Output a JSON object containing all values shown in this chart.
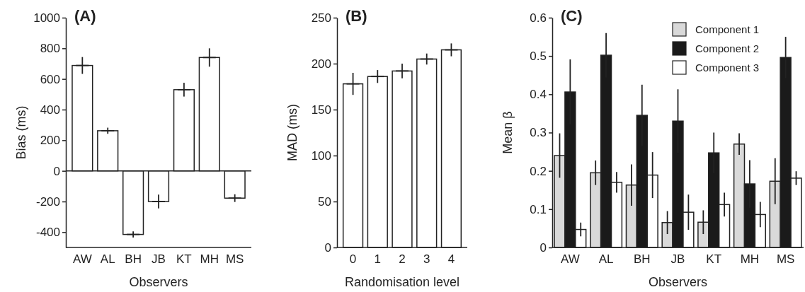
{
  "chart_data": [
    {
      "type": "bar",
      "title": "(A)",
      "xlabel": "Observers",
      "ylabel": "Bias (ms)",
      "categories": [
        "AW",
        "AL",
        "BH",
        "JB",
        "KT",
        "MH",
        "MS"
      ],
      "values": [
        688,
        262,
        -415,
        -200,
        530,
        740,
        -178
      ],
      "errors": [
        55,
        20,
        20,
        45,
        45,
        60,
        25
      ],
      "color": "#ffffff",
      "ylim": [
        -500,
        1000
      ],
      "yticks": [
        -400,
        -200,
        0,
        200,
        400,
        600,
        800,
        1000
      ]
    },
    {
      "type": "bar",
      "title": "(B)",
      "xlabel": "Randomisation level",
      "ylabel": "MAD (ms)",
      "categories": [
        "0",
        "1",
        "2",
        "3",
        "4"
      ],
      "values": [
        178,
        186,
        192,
        205,
        215
      ],
      "errors": [
        12,
        7,
        8,
        6,
        7
      ],
      "color": "#ffffff",
      "ylim": [
        0,
        250
      ],
      "yticks": [
        0,
        50,
        100,
        150,
        200,
        250
      ]
    },
    {
      "type": "bar",
      "title": "(C)",
      "xlabel": "Observers",
      "ylabel": "Mean β",
      "categories": [
        "AW",
        "AL",
        "BH",
        "JB",
        "KT",
        "MH",
        "MS"
      ],
      "legend": "top right",
      "ylim": [
        0,
        0.6
      ],
      "yticks": [
        0,
        0.1,
        0.2,
        0.3,
        0.4,
        0.5,
        0.6
      ],
      "series": [
        {
          "name": "Component 1",
          "color": "#d9d9d9",
          "values": [
            0.24,
            0.195,
            0.163,
            0.065,
            0.066,
            0.27,
            0.173
          ],
          "errors": [
            0.058,
            0.032,
            0.054,
            0.03,
            0.031,
            0.028,
            0.06
          ]
        },
        {
          "name": "Component 2",
          "color": "#1a1a1a",
          "values": [
            0.406,
            0.502,
            0.345,
            0.33,
            0.247,
            0.166,
            0.496
          ],
          "errors": [
            0.085,
            0.058,
            0.08,
            0.083,
            0.053,
            0.062,
            0.054
          ]
        },
        {
          "name": "Component 3",
          "color": "#ffffff",
          "values": [
            0.047,
            0.17,
            0.189,
            0.092,
            0.112,
            0.086,
            0.181
          ],
          "errors": [
            0.018,
            0.027,
            0.06,
            0.046,
            0.031,
            0.033,
            0.018
          ]
        }
      ]
    }
  ]
}
